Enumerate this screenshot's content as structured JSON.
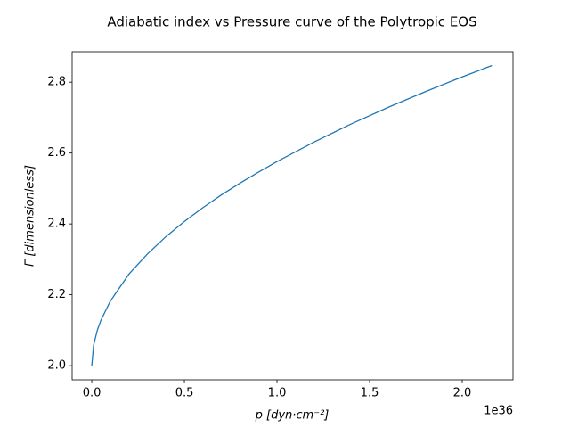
{
  "chart_data": {
    "type": "line",
    "title": "Adiabatic index vs Pressure curve of the Polytropic EOS",
    "x_label": "p [dyn·cm⁻²]",
    "y_label": "Γ [dimensionless]",
    "x_offset_label": "1e36",
    "x": [
      0,
      0.01,
      0.03,
      0.05,
      0.1,
      0.2,
      0.3,
      0.4,
      0.5,
      0.6,
      0.7,
      0.8,
      0.9,
      1.0,
      1.2,
      1.4,
      1.6,
      1.8,
      2.0,
      2.16
    ],
    "series": [
      {
        "color": "#1f77b4",
        "values": [
          2.0,
          2.058,
          2.1,
          2.129,
          2.182,
          2.258,
          2.315,
          2.364,
          2.407,
          2.446,
          2.482,
          2.515,
          2.546,
          2.576,
          2.631,
          2.682,
          2.729,
          2.773,
          2.815,
          2.847
        ]
      }
    ],
    "xlim": [
      -0.106,
      2.274
    ],
    "ylim": [
      1.96,
      2.886
    ],
    "xticks": [
      {
        "value": 0,
        "label": "0.0"
      },
      {
        "value": 0.5,
        "label": "0.5"
      },
      {
        "value": 1,
        "label": "1.0"
      },
      {
        "value": 1.5,
        "label": "1.5"
      },
      {
        "value": 2,
        "label": "2.0"
      }
    ],
    "yticks": [
      {
        "value": 2,
        "label": "2.0"
      },
      {
        "value": 2.2,
        "label": "2.2"
      },
      {
        "value": 2.4,
        "label": "2.4"
      },
      {
        "value": 2.6,
        "label": "2.6"
      },
      {
        "value": 2.8,
        "label": "2.8"
      }
    ],
    "grid": false
  }
}
